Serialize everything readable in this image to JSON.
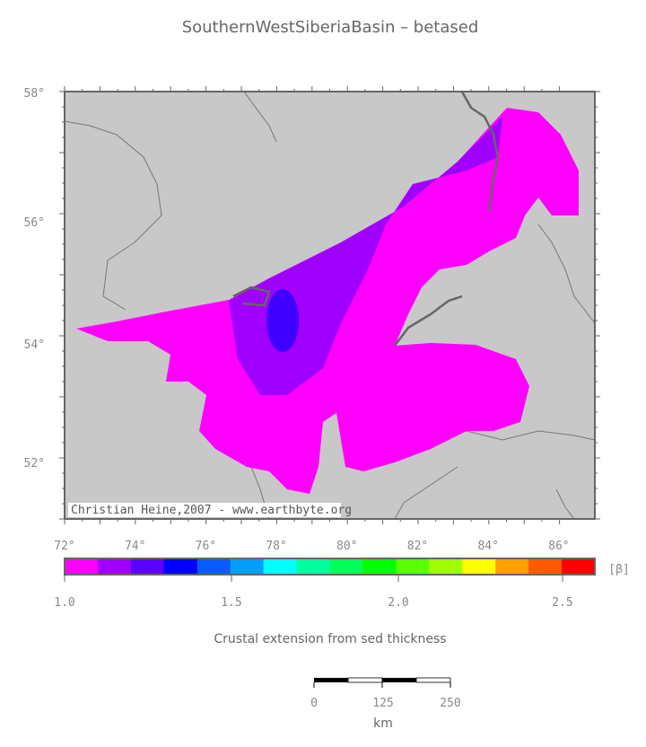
{
  "title": "SouthernWestSiberiaBasin – betased",
  "map": {
    "lat_labels": [
      "58°",
      "56°",
      "54°",
      "52°"
    ],
    "lon_labels": [
      "72°",
      "74°",
      "76°",
      "78°",
      "80°",
      "82°",
      "84°",
      "86°"
    ],
    "credit": "Christian Heine,2007 - www.earthbyte.org"
  },
  "colorbar": {
    "colors": [
      "#ff00ff",
      "#a000ff",
      "#5a00ff",
      "#0000ff",
      "#0a5aff",
      "#00a0ff",
      "#00ffff",
      "#00ffa0",
      "#00ff5a",
      "#00ff00",
      "#5aff00",
      "#a0ff00",
      "#ffff00",
      "#ffa000",
      "#ff5a00",
      "#ff0000"
    ],
    "tick_labels": [
      "1.0",
      "1.5",
      "2.0",
      "2.5"
    ],
    "unit": "[β]",
    "caption": "Crustal extension from sed thickness"
  },
  "scale_bar": {
    "labels": [
      "0",
      "125",
      "250"
    ],
    "unit": "km"
  }
}
